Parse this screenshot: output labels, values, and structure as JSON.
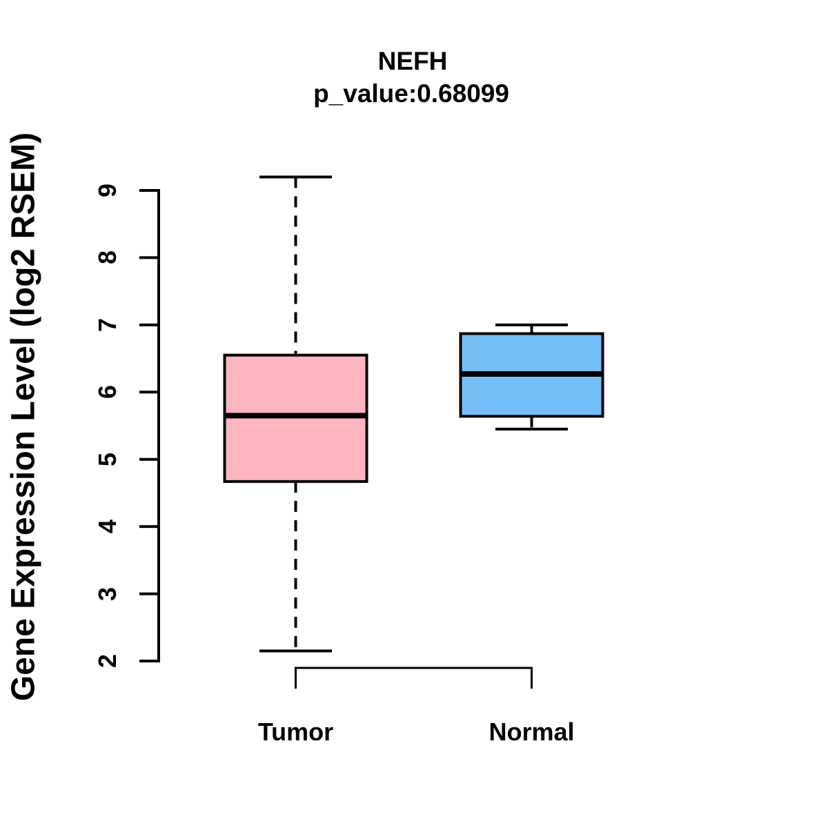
{
  "chart_data": {
    "type": "boxplot",
    "title": "NEFH",
    "subtitle": "p_value:0.68099",
    "ylabel": "Gene Expression Level (log2 RSEM)",
    "xlabel": "",
    "ylim": [
      2,
      9
    ],
    "yticks": [
      9,
      8,
      7,
      6,
      5,
      4,
      3,
      2
    ],
    "categories": [
      "Tumor",
      "Normal"
    ],
    "grid": false,
    "legend_position": "none",
    "series": [
      {
        "name": "Tumor",
        "color": "#FFB6C1",
        "whisker_low": 2.15,
        "q1": 4.67,
        "median": 5.65,
        "q3": 6.55,
        "whisker_high": 9.2
      },
      {
        "name": "Normal",
        "color": "#74BFF7",
        "whisker_low": 5.45,
        "q1": 5.64,
        "median": 6.27,
        "q3": 6.87,
        "whisker_high": 7.0
      }
    ],
    "colors": {
      "stroke": "#000000",
      "background": "#FFFFFF",
      "tumor_fill": "#FFB6C1",
      "normal_fill": "#74BFF7"
    }
  }
}
